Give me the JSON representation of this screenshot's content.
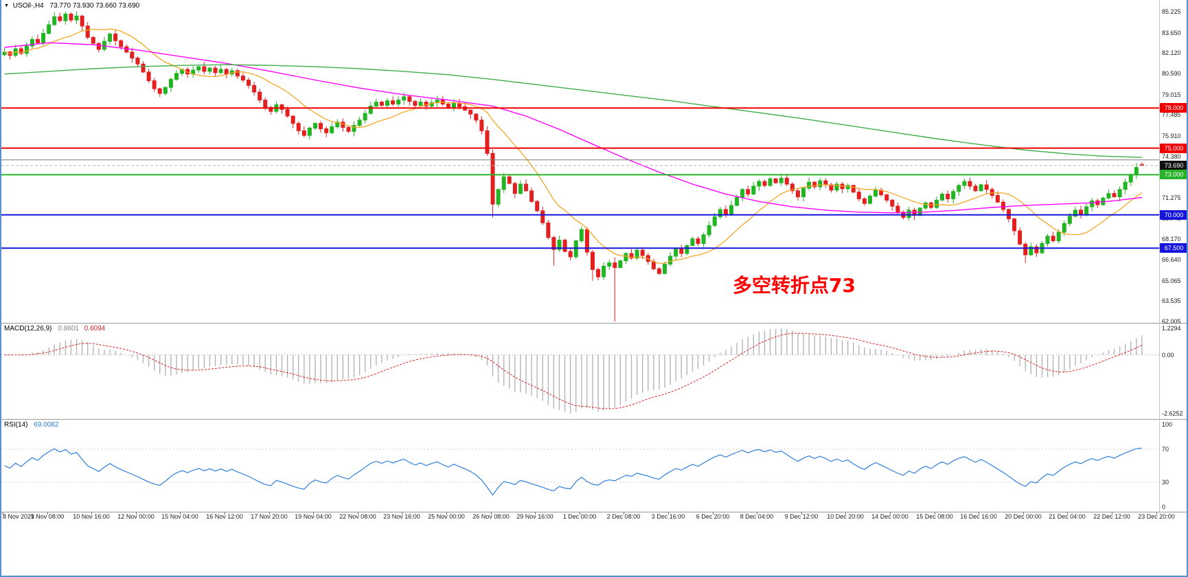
{
  "icons": {
    "symbol_marker": "▼"
  },
  "header": {
    "symbol": "USOil-,H4",
    "ohlc_text": "73.770 73.930 73.660 73.690"
  },
  "macd_header": {
    "name": "MACD(12,26,9)",
    "main": "0.8601",
    "signal": "0.6094"
  },
  "rsi_header": {
    "name": "RSI(14)",
    "value": "69.0082"
  },
  "chart_data": {
    "type": "candlestick",
    "symbol": "USOil-",
    "timeframe": "H4",
    "title": "USOil-,H4 73.770 73.930 73.660 73.690",
    "ylim": [
      62.005,
      85.225
    ],
    "grid": false,
    "last_ohlc": {
      "open": 73.77,
      "high": 73.93,
      "low": 73.66,
      "close": 73.69
    },
    "y_axis_ticks": [
      85.225,
      83.65,
      82.12,
      80.59,
      79.015,
      77.485,
      75.91,
      74.38,
      71.275,
      69.745,
      68.17,
      66.64,
      65.065,
      63.535,
      62.005
    ],
    "x_labels": [
      "8 Nov 2021",
      "9 Nov 08:00",
      "10 Nov 16:00",
      "12 Nov 00:00",
      "15 Nov 04:00",
      "16 Nov 12:00",
      "17 Nov 20:00",
      "19 Nov 04:00",
      "22 Nov 08:00",
      "23 Nov 16:00",
      "25 Nov 00:00",
      "26 Nov 08:00",
      "29 Nov 16:00",
      "1 Dec 00:00",
      "2 Dec 08:00",
      "3 Dec 16:00",
      "6 Dec 20:00",
      "8 Dec 04:00",
      "9 Dec 12:00",
      "10 Dec 20:00",
      "14 Dec 00:00",
      "15 Dec 08:00",
      "16 Dec 16:00",
      "20 Dec 00:00",
      "21 Dec 04:00",
      "22 Dec 12:00",
      "23 Dec 20:00"
    ],
    "first_open": 82.0,
    "closes": [
      82.2,
      81.95,
      82.45,
      82.1,
      82.65,
      83.15,
      82.9,
      83.6,
      84.25,
      84.85,
      84.55,
      85.05,
      84.6,
      84.9,
      84.15,
      83.3,
      82.85,
      82.4,
      83.0,
      83.55,
      83.05,
      82.6,
      82.2,
      81.75,
      81.3,
      80.7,
      80.05,
      79.45,
      79.1,
      79.55,
      80.15,
      80.6,
      80.9,
      80.55,
      80.85,
      81.1,
      80.75,
      81.0,
      80.65,
      80.9,
      80.55,
      80.8,
      80.4,
      80.1,
      79.7,
      79.2,
      78.6,
      78.05,
      77.75,
      78.25,
      77.9,
      77.4,
      76.85,
      76.3,
      75.95,
      76.5,
      76.85,
      76.45,
      76.15,
      76.6,
      76.95,
      76.55,
      76.25,
      76.7,
      77.1,
      77.6,
      78.15,
      78.45,
      78.2,
      78.55,
      78.3,
      78.6,
      78.85,
      78.5,
      78.2,
      78.45,
      78.15,
      78.4,
      78.6,
      78.3,
      78.05,
      78.35,
      78.1,
      77.85,
      77.55,
      77.1,
      76.3,
      74.6,
      70.8,
      71.9,
      72.85,
      72.35,
      71.6,
      72.3,
      71.8,
      71.0,
      70.3,
      69.4,
      68.3,
      67.4,
      68.1,
      67.25,
      66.85,
      68.05,
      68.9,
      67.2,
      65.9,
      65.35,
      66.15,
      66.4,
      66.05,
      66.55,
      67.1,
      66.75,
      67.35,
      66.95,
      66.5,
      65.95,
      65.6,
      66.3,
      66.9,
      67.45,
      67.1,
      67.7,
      68.2,
      67.85,
      68.5,
      69.2,
      69.85,
      70.4,
      70.05,
      70.7,
      71.3,
      71.9,
      71.55,
      72.15,
      72.5,
      72.2,
      72.7,
      72.4,
      72.75,
      72.3,
      71.8,
      71.35,
      72.0,
      72.45,
      72.1,
      72.55,
      72.25,
      71.85,
      72.3,
      71.95,
      72.2,
      71.7,
      71.2,
      70.85,
      71.4,
      71.85,
      71.5,
      71.1,
      70.65,
      70.2,
      69.8,
      70.35,
      69.95,
      70.5,
      70.9,
      70.55,
      71.1,
      71.55,
      71.2,
      71.75,
      72.2,
      72.5,
      72.15,
      71.8,
      72.25,
      71.9,
      71.45,
      70.95,
      70.4,
      69.7,
      68.8,
      67.8,
      67.0,
      67.6,
      67.15,
      67.85,
      68.4,
      68.05,
      68.7,
      69.35,
      69.9,
      70.35,
      70.05,
      70.6,
      71.05,
      70.75,
      71.25,
      71.6,
      71.35,
      71.9,
      72.45,
      73.0,
      73.55,
      73.69
    ],
    "overrides": {
      "11": {
        "h": 85.225
      },
      "54": {
        "l": 75.8
      },
      "88": {
        "l": 69.8
      },
      "99": {
        "l": 66.2
      },
      "106": {
        "l": 65.05
      },
      "110": {
        "o": 66.4,
        "c": 66.05,
        "l": 62.005,
        "h": 66.8
      },
      "184": {
        "l": 66.4
      },
      "205": {
        "o": 73.77,
        "h": 73.93,
        "l": 73.66,
        "c": 73.69
      }
    },
    "colors": {
      "up": "#22b422",
      "down": "#e22020",
      "background": "#ffffff"
    },
    "moving_averages": [
      {
        "name": "fast",
        "color": "#f5a623",
        "period": 13
      },
      {
        "name": "mid",
        "color": "#ff00ff",
        "anchors": [
          [
            0,
            82.55
          ],
          [
            8,
            82.9
          ],
          [
            16,
            82.75
          ],
          [
            24,
            82.35
          ],
          [
            32,
            81.85
          ],
          [
            40,
            81.35
          ],
          [
            48,
            80.75
          ],
          [
            56,
            80.1
          ],
          [
            64,
            79.5
          ],
          [
            72,
            79.0
          ],
          [
            80,
            78.6
          ],
          [
            88,
            78.15
          ],
          [
            94,
            77.4
          ],
          [
            100,
            76.4
          ],
          [
            106,
            75.3
          ],
          [
            112,
            74.2
          ],
          [
            118,
            73.2
          ],
          [
            124,
            72.3
          ],
          [
            130,
            71.55
          ],
          [
            136,
            71.0
          ],
          [
            142,
            70.6
          ],
          [
            148,
            70.35
          ],
          [
            154,
            70.2
          ],
          [
            160,
            70.15
          ],
          [
            166,
            70.2
          ],
          [
            172,
            70.35
          ],
          [
            178,
            70.55
          ],
          [
            184,
            70.7
          ],
          [
            190,
            70.8
          ],
          [
            196,
            70.9
          ],
          [
            200,
            71.05
          ],
          [
            205,
            71.3
          ]
        ]
      },
      {
        "name": "slow",
        "color": "#3fae49",
        "anchors": [
          [
            0,
            80.55
          ],
          [
            8,
            80.75
          ],
          [
            16,
            80.95
          ],
          [
            24,
            81.1
          ],
          [
            32,
            81.2
          ],
          [
            40,
            81.25
          ],
          [
            48,
            81.2
          ],
          [
            56,
            81.1
          ],
          [
            64,
            80.95
          ],
          [
            72,
            80.75
          ],
          [
            80,
            80.5
          ],
          [
            88,
            80.15
          ],
          [
            96,
            79.75
          ],
          [
            104,
            79.35
          ],
          [
            112,
            78.95
          ],
          [
            120,
            78.55
          ],
          [
            128,
            78.1
          ],
          [
            136,
            77.65
          ],
          [
            144,
            77.2
          ],
          [
            152,
            76.7
          ],
          [
            160,
            76.2
          ],
          [
            168,
            75.7
          ],
          [
            176,
            75.25
          ],
          [
            184,
            74.85
          ],
          [
            192,
            74.55
          ],
          [
            198,
            74.4
          ],
          [
            205,
            74.3
          ]
        ]
      }
    ],
    "hlines": [
      {
        "value": 78.0,
        "color": "#f00000",
        "width": 2,
        "style": "solid",
        "tag": "78.000",
        "tag_bg": "#f00000"
      },
      {
        "value": 75.0,
        "color": "#f00000",
        "width": 2,
        "style": "solid",
        "tag": "75.000",
        "tag_bg": "#f00000"
      },
      {
        "value": 74.12,
        "color": "#7a7a7a",
        "width": 1,
        "style": "solid",
        "tag": null,
        "tag_bg": null
      },
      {
        "value": 73.69,
        "color": "#b5b5b5",
        "width": 1,
        "style": "dash",
        "tag": "73.690",
        "tag_bg": "#111111"
      },
      {
        "value": 73.0,
        "color": "#28b428",
        "width": 2,
        "style": "solid",
        "tag": "73.000",
        "tag_bg": "#28b428"
      },
      {
        "value": 70.0,
        "color": "#1515dd",
        "width": 2,
        "style": "solid",
        "tag": "70.000",
        "tag_bg": "#1515dd"
      },
      {
        "value": 67.5,
        "color": "#1515dd",
        "width": 2,
        "style": "solid",
        "tag": "67.500",
        "tag_bg": "#1515dd"
      }
    ],
    "indicators": [
      {
        "name": "MACD",
        "params": "12,26,9",
        "main_value": 0.8601,
        "signal_value": 0.6094,
        "axis_labels": [
          "1.2294",
          "0.00",
          "-2.6252"
        ],
        "histogram_color": "#b4b4b4",
        "signal_color": "#dd2222"
      },
      {
        "name": "RSI",
        "params": "14",
        "value": 69.0082,
        "axis_labels": [
          "100",
          "70",
          "30",
          "0"
        ],
        "line_color": "#2f7ed8",
        "levels": [
          70,
          30
        ]
      }
    ],
    "annotation": {
      "text": "多空转折点73",
      "color": "#ff0000"
    }
  }
}
